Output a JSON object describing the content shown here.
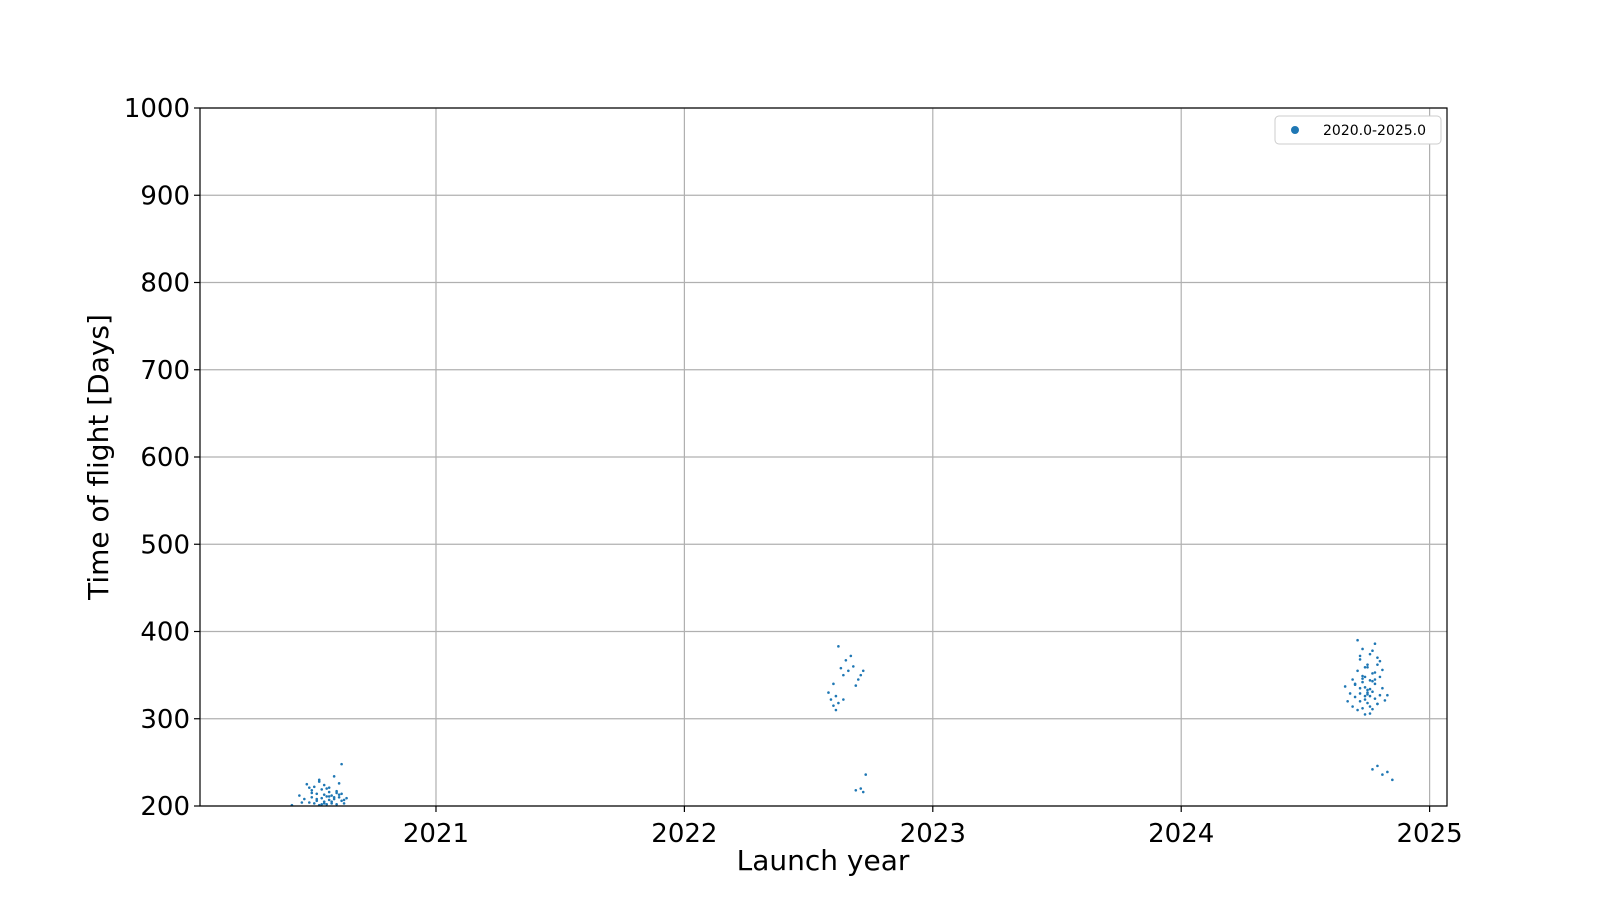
{
  "chart_data": {
    "type": "scatter",
    "title": "",
    "xlabel": "Launch year",
    "ylabel": "Time of flight [Days]",
    "xlim": [
      2020.05,
      2025.07
    ],
    "ylim": [
      200,
      1000
    ],
    "x_ticks": [
      2021,
      2022,
      2023,
      2024,
      2025
    ],
    "y_ticks": [
      200,
      300,
      400,
      500,
      600,
      700,
      800,
      900,
      1000
    ],
    "grid": true,
    "legend_position": "top-right",
    "series": [
      {
        "name": "2020.0-2025.0",
        "color": "#1f77b4",
        "x": [
          2020.42,
          2020.45,
          2020.47,
          2020.48,
          2020.49,
          2020.5,
          2020.5,
          2020.51,
          2020.51,
          2020.52,
          2020.52,
          2020.53,
          2020.53,
          2020.54,
          2020.54,
          2020.55,
          2020.55,
          2020.55,
          2020.56,
          2020.56,
          2020.57,
          2020.57,
          2020.57,
          2020.58,
          2020.58,
          2020.59,
          2020.59,
          2020.6,
          2020.6,
          2020.61,
          2020.61,
          2020.62,
          2020.62,
          2020.63,
          2020.64,
          2020.5,
          2020.53,
          2020.56,
          2020.58,
          2020.61,
          2020.52,
          2020.55,
          2020.59,
          2020.62,
          2020.46,
          2020.54,
          2020.57,
          2020.6,
          2020.63,
          2020.49,
          2022.58,
          2022.59,
          2022.6,
          2022.6,
          2022.61,
          2022.61,
          2022.62,
          2022.63,
          2022.64,
          2022.65,
          2022.66,
          2022.67,
          2022.68,
          2022.69,
          2022.7,
          2022.71,
          2022.72,
          2022.69,
          2022.71,
          2022.72,
          2022.73,
          2022.62,
          2022.64,
          2024.66,
          2024.67,
          2024.68,
          2024.69,
          2024.69,
          2024.7,
          2024.7,
          2024.71,
          2024.71,
          2024.72,
          2024.72,
          2024.72,
          2024.73,
          2024.73,
          2024.73,
          2024.74,
          2024.74,
          2024.74,
          2024.75,
          2024.75,
          2024.75,
          2024.76,
          2024.76,
          2024.76,
          2024.77,
          2024.77,
          2024.77,
          2024.78,
          2024.78,
          2024.78,
          2024.79,
          2024.79,
          2024.8,
          2024.8,
          2024.81,
          2024.81,
          2024.82,
          2024.83,
          2024.71,
          2024.74,
          2024.76,
          2024.79,
          2024.73,
          2024.77,
          2024.75,
          2024.72,
          2024.78,
          2024.74,
          2024.76,
          2024.8,
          2024.7,
          2024.73,
          2024.75,
          2024.77,
          2024.79,
          2024.74,
          2024.76,
          2024.72,
          2024.78,
          2024.75,
          2024.77,
          2024.79,
          2024.81,
          2024.83,
          2024.85
        ],
        "y": [
          201,
          212,
          208,
          225,
          204,
          218,
          210,
          203,
          222,
          206,
          214,
          230,
          201,
          209,
          219,
          205,
          213,
          224,
          202,
          211,
          216,
          207,
          221,
          203,
          212,
          234,
          208,
          217,
          202,
          210,
          226,
          206,
          214,
          203,
          209,
          215,
          228,
          220,
          205,
          213,
          208,
          203,
          210,
          248,
          204,
          202,
          211,
          215,
          207,
          221,
          330,
          322,
          315,
          340,
          310,
          326,
          383,
          358,
          350,
          367,
          355,
          372,
          360,
          338,
          345,
          350,
          355,
          218,
          220,
          216,
          236,
          318,
          322,
          337,
          320,
          329,
          314,
          345,
          340,
          325,
          355,
          310,
          335,
          368,
          320,
          342,
          312,
          380,
          326,
          348,
          305,
          333,
          359,
          318,
          344,
          326,
          374,
          331,
          311,
          352,
          323,
          340,
          386,
          317,
          362,
          348,
          327,
          356,
          335,
          321,
          327,
          390,
          336,
          314,
          370,
          349,
          343,
          362,
          329,
          353,
          322,
          306,
          366,
          339,
          346,
          328,
          378,
          317,
          359,
          334,
          372,
          345,
          330,
          242,
          246,
          236,
          239,
          230
        ]
      }
    ]
  }
}
